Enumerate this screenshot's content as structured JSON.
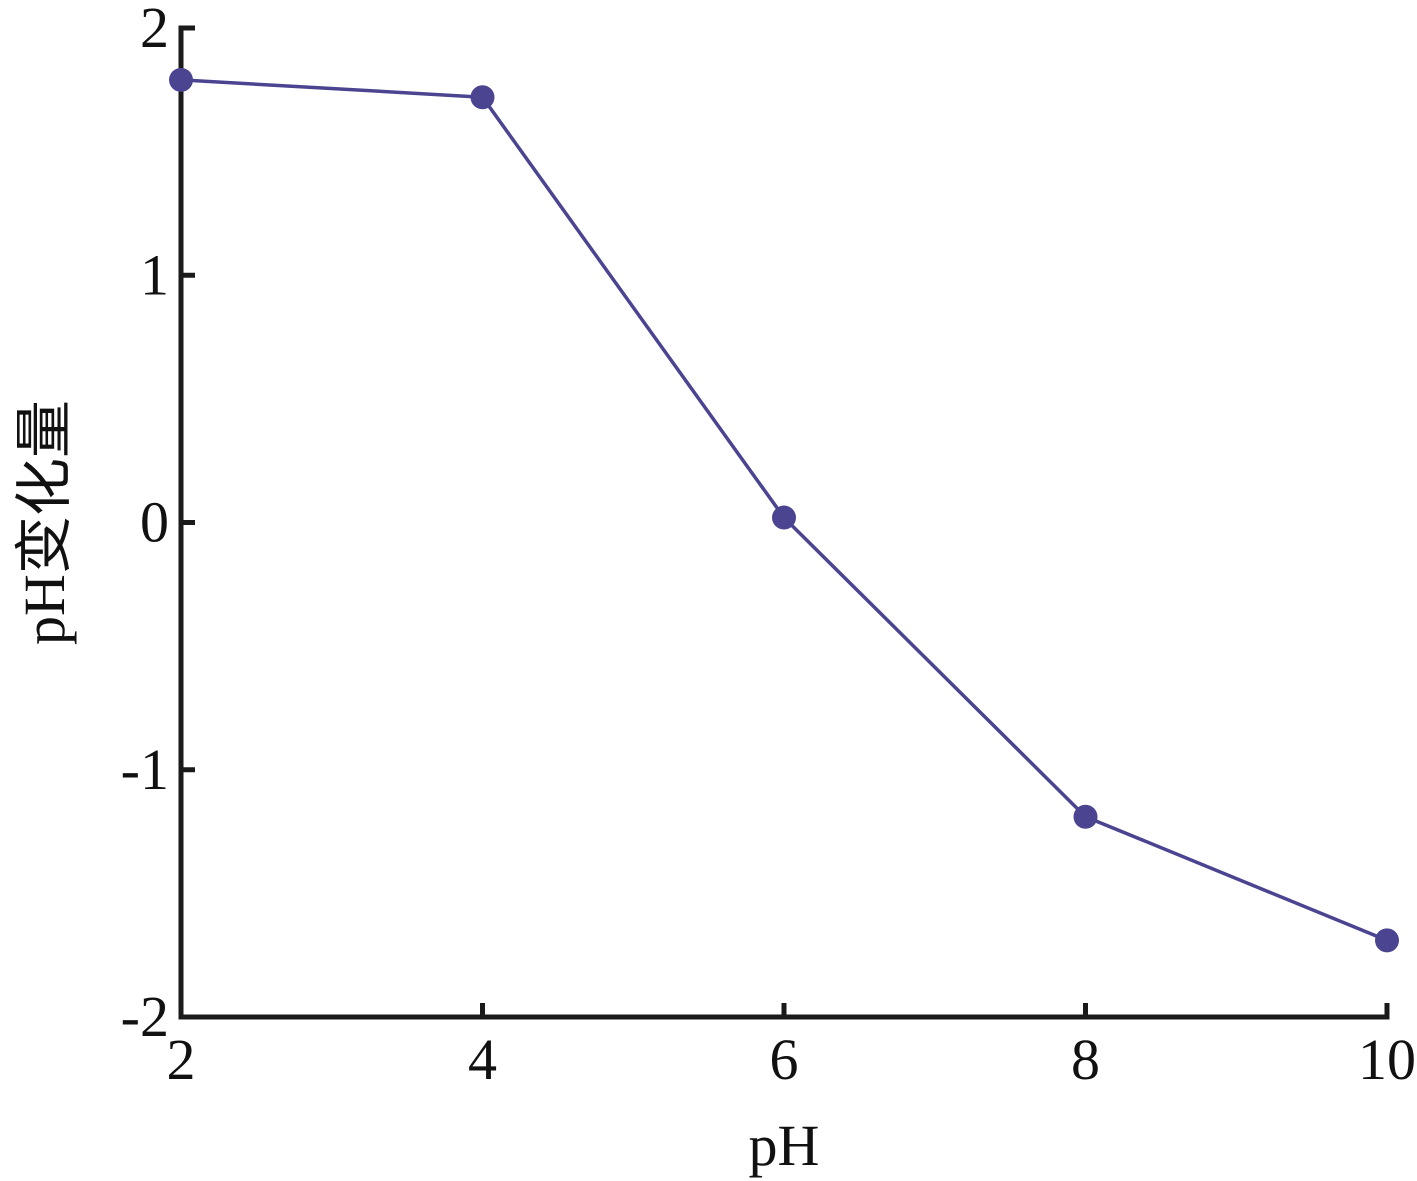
{
  "chart_data": {
    "type": "line",
    "title": "",
    "xlabel": "pH",
    "ylabel": "pH变化量",
    "xlim": [
      2,
      10
    ],
    "ylim": [
      -2,
      2
    ],
    "x_ticks": [
      2,
      4,
      6,
      8,
      10
    ],
    "y_ticks": [
      -2,
      -1,
      0,
      1,
      2
    ],
    "grid": false,
    "legend": "none",
    "series": [
      {
        "color": "#4b4490",
        "x": [
          2,
          4,
          6,
          8,
          10
        ],
        "y": [
          1.79,
          1.72,
          0.02,
          -1.19,
          -1.69
        ]
      }
    ]
  }
}
